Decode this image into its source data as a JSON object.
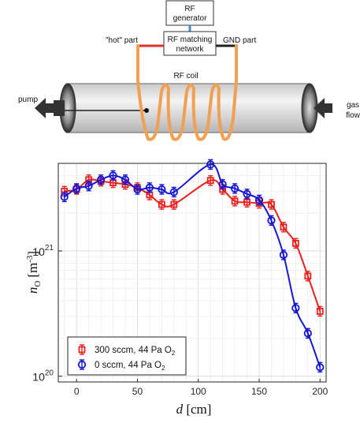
{
  "diagram": {
    "rf_generator_line1": "RF",
    "rf_generator_line2": "generator",
    "matching_line1": "RF matching",
    "matching_line2": "network",
    "hot_label": "\"hot\" part",
    "gnd_label": "GND part",
    "coil_label": "RF coil",
    "pump_label": "pump",
    "gas_label_line1": "gas",
    "gas_label_line2": "flow",
    "colors": {
      "coil": "#f0a050",
      "hot_wire": "#e03030",
      "gnd_wire": "#222222",
      "cable": "#3a8fd0"
    }
  },
  "chart_data": {
    "type": "line",
    "x_label_var": "d",
    "x_label_unit": "[cm]",
    "y_label_var": "n",
    "y_label_sub": "O",
    "y_label_unit": "[m",
    "y_label_exp": "-3",
    "y_label_close": "]",
    "y_scale": "log",
    "xlim": [
      -15,
      205
    ],
    "ylim": [
      9e+19,
      5e+21
    ],
    "x_ticks": [
      0,
      50,
      100,
      150,
      200
    ],
    "x_tick_labels": [
      "0",
      "50",
      "100",
      "150",
      "200"
    ],
    "y_tick_labels": [
      {
        "value": 1e+21,
        "base": "10",
        "exp": "21"
      },
      {
        "value": 1e+20,
        "base": "10",
        "exp": "20"
      }
    ],
    "grid": true,
    "legend_position": "bottom-left",
    "series": [
      {
        "name_main": "300 sccm, 44 Pa O",
        "name_sub": "2",
        "color": "#e8211d",
        "marker": "square",
        "x": [
          -10,
          0,
          10,
          20,
          30,
          40,
          50,
          60,
          70,
          80,
          110,
          120,
          130,
          140,
          150,
          160,
          170,
          180,
          190,
          200
        ],
        "y": [
          3e+21,
          3.1e+21,
          3.7e+21,
          3.6e+21,
          3.5e+21,
          3.4e+21,
          3.2e+21,
          2.8e+21,
          2.35e+21,
          2.35e+21,
          3.65e+21,
          3.1e+21,
          2.5e+21,
          2.45e+21,
          2.4e+21,
          2.35e+21,
          1.55e+21,
          1.15e+21,
          6.3e+20,
          3.3e+20
        ]
      },
      {
        "name_main": "0 sccm, 44 Pa O",
        "name_sub": "2",
        "color": "#1515d6",
        "marker": "circle",
        "x": [
          -10,
          0,
          10,
          20,
          30,
          40,
          50,
          60,
          70,
          80,
          110,
          120,
          130,
          140,
          150,
          160,
          170,
          180,
          190,
          200
        ],
        "y": [
          2.7e+21,
          3.15e+21,
          3.3e+21,
          3.7e+21,
          4e+21,
          3.7e+21,
          3.1e+21,
          3.2e+21,
          3.1e+21,
          2.95e+21,
          4.9e+21,
          3.4e+21,
          3.15e+21,
          2.85e+21,
          2.55e+21,
          1.75e+21,
          9.3e+20,
          3.5e+20,
          2.2e+20,
          1.18e+20
        ]
      }
    ]
  }
}
